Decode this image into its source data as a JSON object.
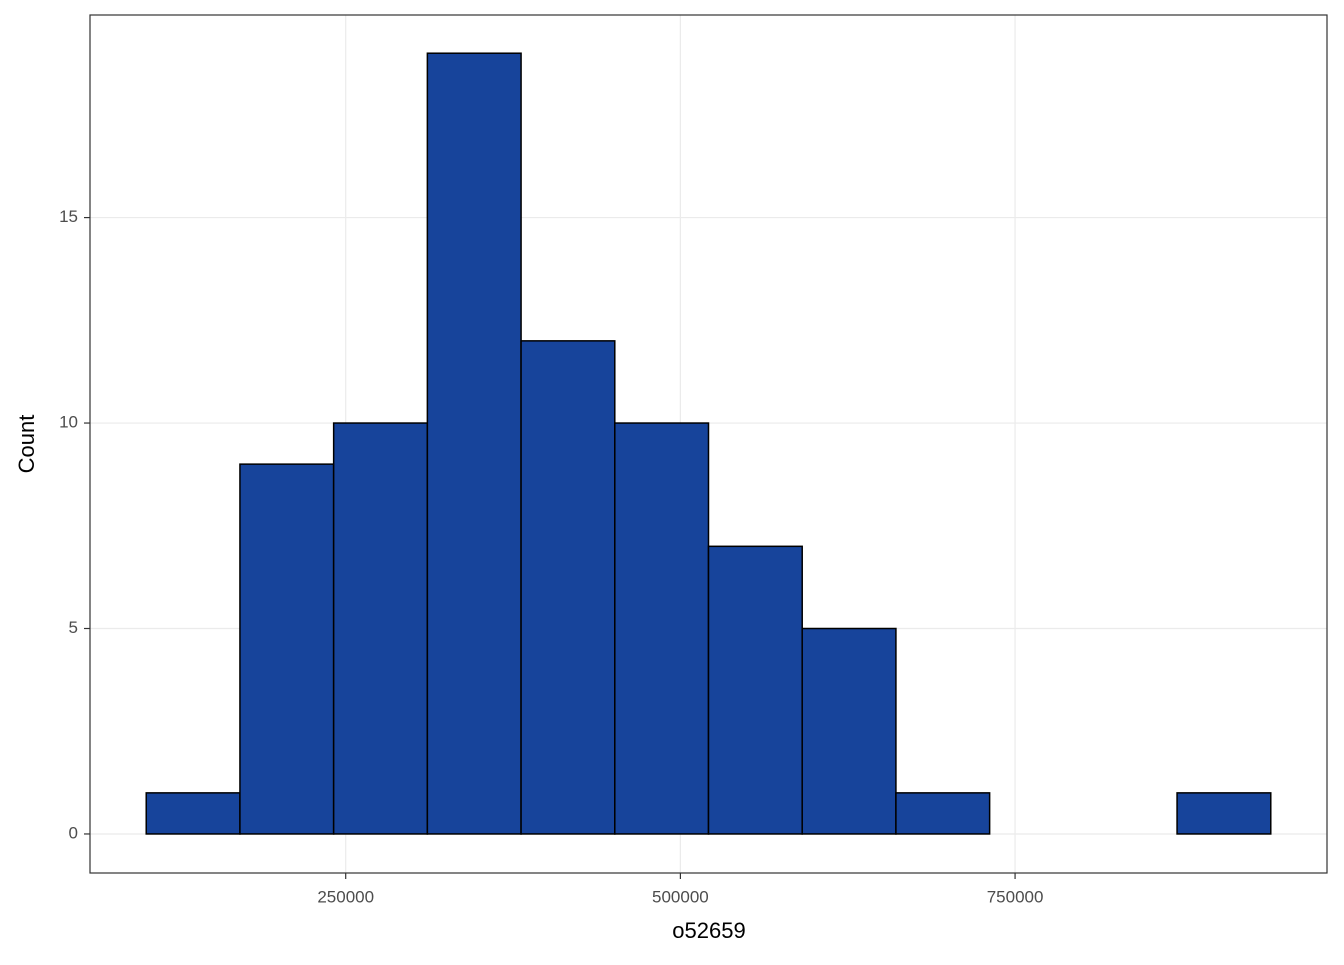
{
  "chart_data": {
    "type": "histogram",
    "x_label": "o52659",
    "y_label": "Count",
    "bins": [
      101000,
      171000,
      241000,
      311000,
      381000,
      451000,
      521000,
      591000,
      661000,
      731000,
      801000,
      871000,
      941000
    ],
    "values": [
      1,
      9,
      10,
      19,
      12,
      10,
      7,
      5,
      1,
      0,
      0,
      1
    ],
    "color": "#17449b",
    "edgecolor": "#000000",
    "xlim": [
      59000,
      983000
    ],
    "xticks": [
      250000,
      500000,
      750000
    ],
    "ylim": [
      -0.95,
      19.93
    ],
    "yticks": [
      0,
      5,
      10,
      15
    ],
    "grid": true
  }
}
